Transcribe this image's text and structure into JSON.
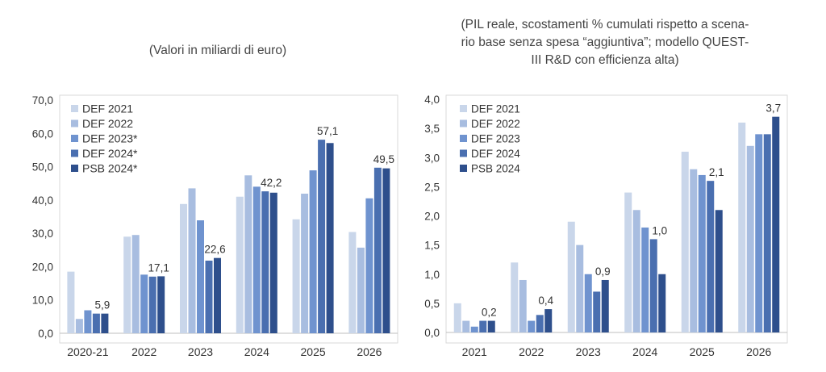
{
  "left_chart_subtitle": "(Valori in miliardi di euro)",
  "right_chart_subtitle_lines": [
    "(PIL reale, scostamenti % cumulati rispetto a scena-",
    "rio base senza spesa “aggiuntiva”;  modello QUEST-",
    "III R&D con efficienza alta)"
  ],
  "colors": [
    "#c9d6ea",
    "#a8bde0",
    "#6f93cf",
    "#4a6fb0",
    "#2e4f8c"
  ],
  "chart_data": [
    {
      "type": "bar",
      "categories": [
        "2020-21",
        "2022",
        "2023",
        "2024",
        "2025",
        "2026"
      ],
      "series": [
        {
          "name": "DEF 2021",
          "values": [
            18.5,
            29.0,
            38.8,
            41.0,
            34.2,
            30.4
          ]
        },
        {
          "name": "DEF 2022",
          "values": [
            4.3,
            29.5,
            43.5,
            47.4,
            41.9,
            25.7
          ]
        },
        {
          "name": "DEF 2023*",
          "values": [
            6.9,
            17.6,
            33.9,
            44.0,
            48.9,
            40.5
          ]
        },
        {
          "name": "DEF 2024*",
          "values": [
            5.9,
            17.0,
            21.8,
            42.6,
            58.1,
            49.7
          ]
        },
        {
          "name": "PSB 2024*",
          "values": [
            5.9,
            17.1,
            22.6,
            42.2,
            57.1,
            49.5
          ]
        }
      ],
      "data_labels": [
        "5,9",
        "17,1",
        "22,6",
        "42,2",
        "57,1",
        "49,5"
      ],
      "yticks": [
        "0,0",
        "10,0",
        "20,0",
        "30,0",
        "40,0",
        "50,0",
        "60,0",
        "70,0"
      ],
      "ylim": [
        0,
        70
      ],
      "legend": "top-left"
    },
    {
      "type": "bar",
      "categories": [
        "2021",
        "2022",
        "2023",
        "2024",
        "2025",
        "2026"
      ],
      "series": [
        {
          "name": "DEF 2021",
          "values": [
            0.5,
            1.2,
            1.9,
            2.4,
            3.1,
            3.6
          ]
        },
        {
          "name": "DEF 2022",
          "values": [
            0.2,
            0.9,
            1.5,
            2.1,
            2.8,
            3.2
          ]
        },
        {
          "name": "DEF 2023",
          "values": [
            0.1,
            0.2,
            1.0,
            1.8,
            2.7,
            3.4
          ]
        },
        {
          "name": "DEF 2024",
          "values": [
            0.2,
            0.3,
            0.7,
            1.6,
            2.6,
            3.4
          ]
        },
        {
          "name": "PSB 2024",
          "values": [
            0.2,
            0.4,
            0.9,
            1.0,
            2.1,
            3.7
          ]
        }
      ],
      "data_labels": [
        "0,2",
        "0,4",
        "0,9",
        "1,0",
        "2,1",
        "3,7"
      ],
      "yticks": [
        "0,0",
        "0,5",
        "1,0",
        "1,5",
        "2,0",
        "2,5",
        "3,0",
        "3,5",
        "4,0"
      ],
      "ylim": [
        0,
        4
      ],
      "legend": "top-left"
    }
  ]
}
